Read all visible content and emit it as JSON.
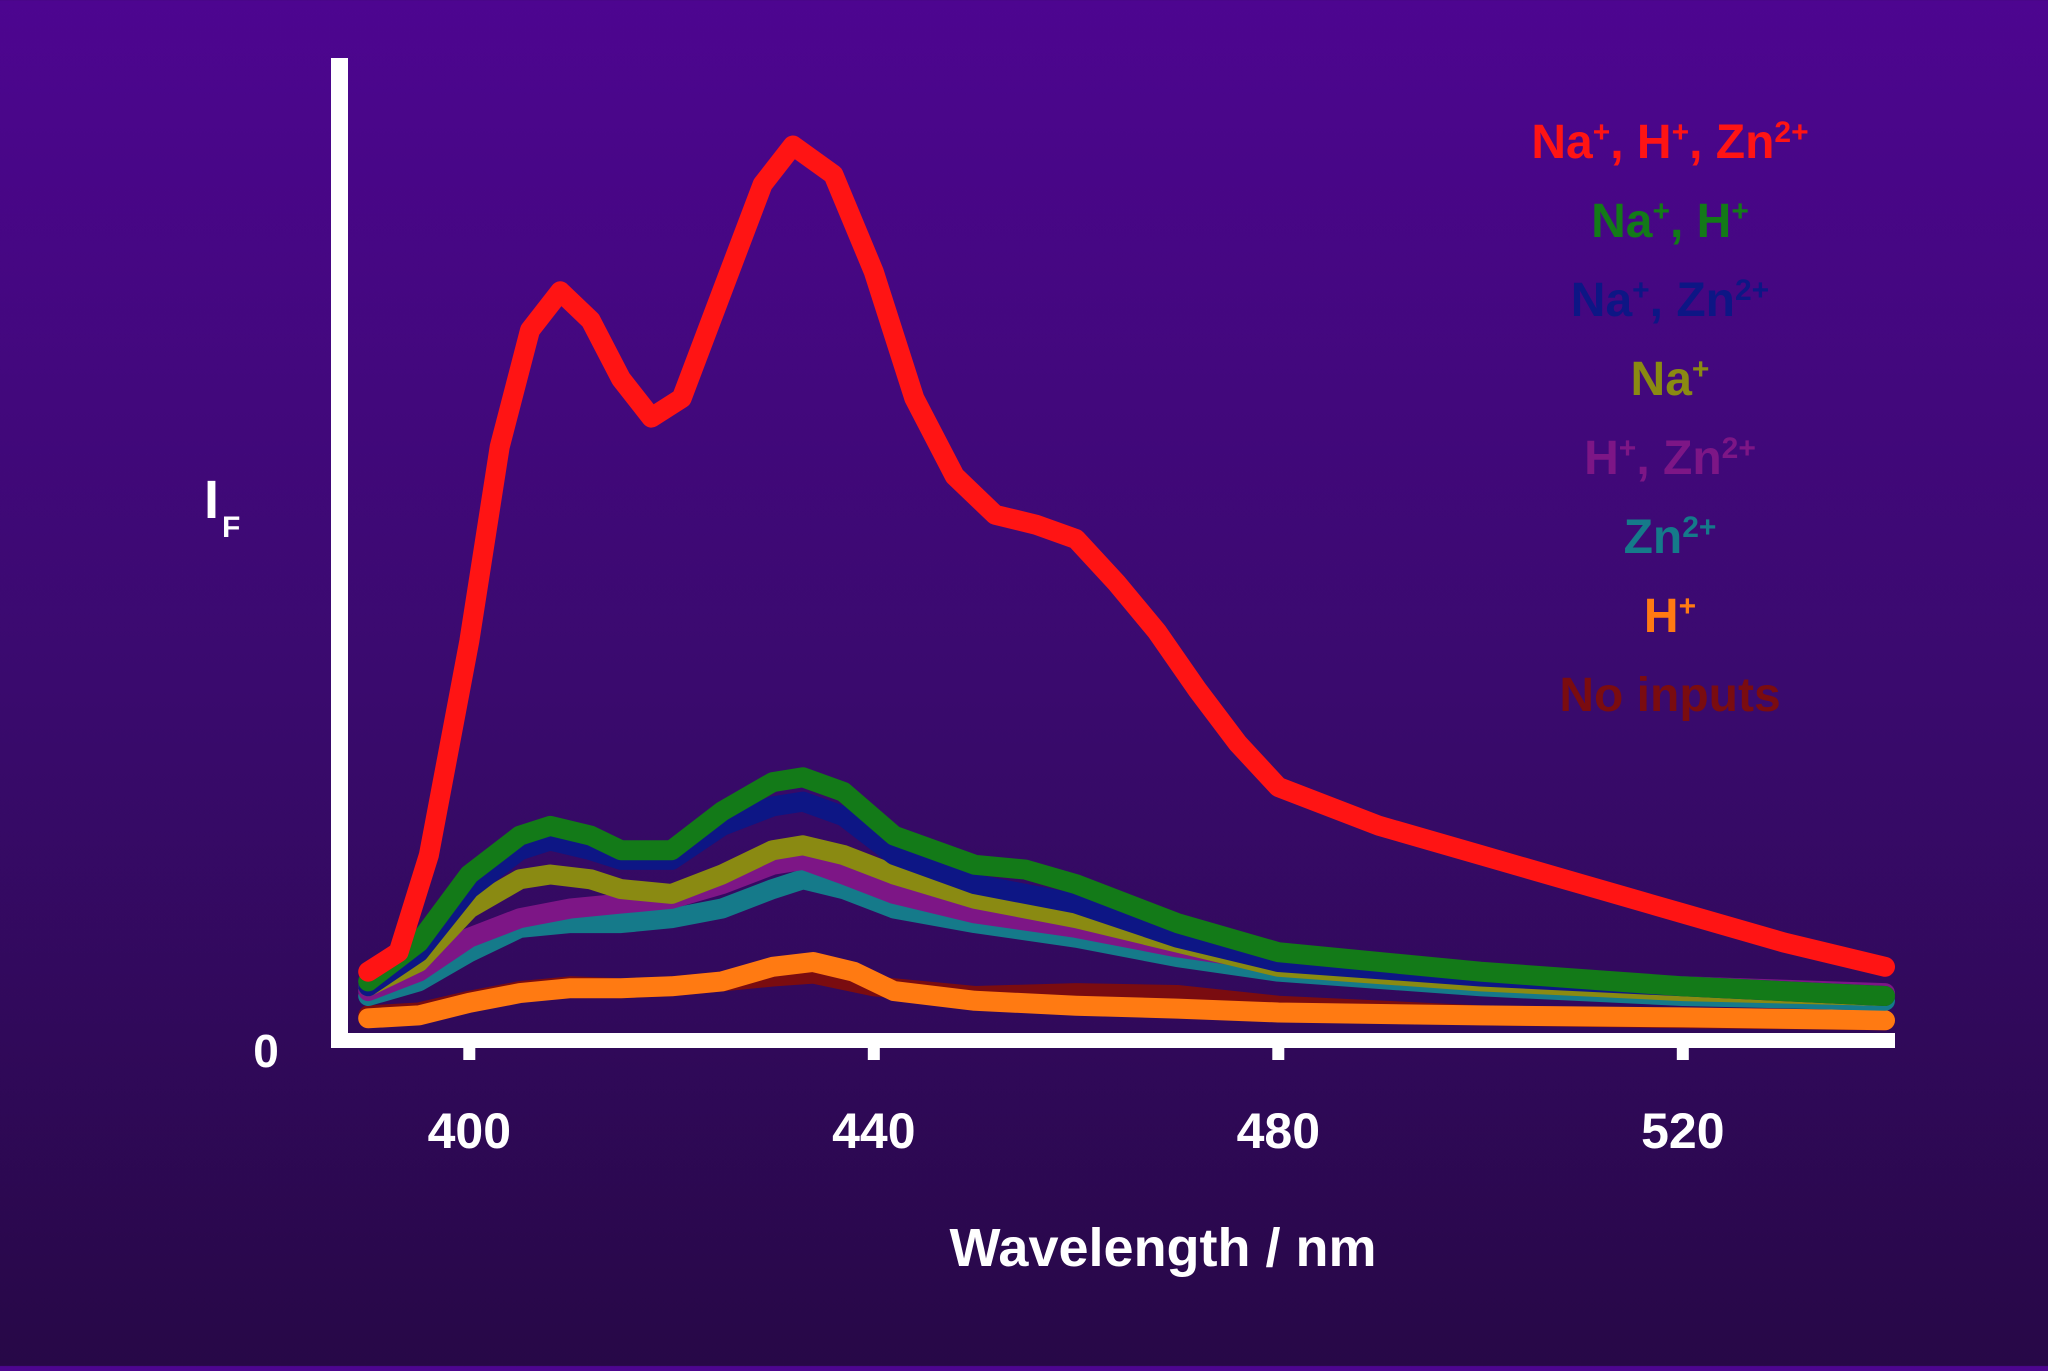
{
  "chart_data": {
    "type": "line",
    "title": "",
    "xlabel": "Wavelength / nm",
    "ylabel_main": "I",
    "ylabel_sub": "F",
    "y_origin_label": "0",
    "xlim": [
      388,
      540
    ],
    "ylim": [
      0,
      100
    ],
    "x_ticks": [
      400,
      440,
      480,
      520
    ],
    "x_tick_labels": [
      "400",
      "440",
      "480",
      "520"
    ],
    "grid": false,
    "legend_position": "top-right",
    "series": [
      {
        "name": "No inputs",
        "color": "#7a0c10",
        "legend": [
          {
            "t": "No inputs"
          }
        ],
        "points": [
          [
            390,
            1.5
          ],
          [
            395,
            1.8
          ],
          [
            400,
            3.0
          ],
          [
            405,
            4.0
          ],
          [
            410,
            4.5
          ],
          [
            415,
            4.3
          ],
          [
            420,
            4.5
          ],
          [
            425,
            5.0
          ],
          [
            430,
            5.5
          ],
          [
            434,
            5.8
          ],
          [
            440,
            4.5
          ],
          [
            450,
            3.5
          ],
          [
            460,
            3.8
          ],
          [
            470,
            3.6
          ],
          [
            480,
            2.5
          ],
          [
            500,
            1.5
          ],
          [
            520,
            1.2
          ],
          [
            540,
            1.0
          ]
        ]
      },
      {
        "name": "H+",
        "color": "#ff7a12",
        "legend": [
          {
            "t": "H"
          },
          {
            "t": "+",
            "sup": true
          }
        ],
        "points": [
          [
            390,
            1.2
          ],
          [
            395,
            1.5
          ],
          [
            400,
            2.8
          ],
          [
            405,
            3.8
          ],
          [
            410,
            4.3
          ],
          [
            415,
            4.3
          ],
          [
            420,
            4.5
          ],
          [
            425,
            5.0
          ],
          [
            430,
            6.5
          ],
          [
            434,
            7.0
          ],
          [
            438,
            6.0
          ],
          [
            442,
            4.0
          ],
          [
            450,
            3.0
          ],
          [
            460,
            2.5
          ],
          [
            470,
            2.2
          ],
          [
            480,
            1.8
          ],
          [
            500,
            1.5
          ],
          [
            520,
            1.3
          ],
          [
            540,
            1.0
          ]
        ]
      },
      {
        "name": "Zn2+",
        "color": "#157a8a",
        "legend": [
          {
            "t": "Zn"
          },
          {
            "t": "2+",
            "sup": true
          }
        ],
        "points": [
          [
            390,
            3.5
          ],
          [
            395,
            5.0
          ],
          [
            400,
            8.0
          ],
          [
            405,
            10.5
          ],
          [
            410,
            11.0
          ],
          [
            415,
            11.0
          ],
          [
            420,
            11.5
          ],
          [
            425,
            12.5
          ],
          [
            430,
            14.5
          ],
          [
            433,
            15.5
          ],
          [
            437,
            14.5
          ],
          [
            442,
            12.5
          ],
          [
            450,
            11.0
          ],
          [
            460,
            9.5
          ],
          [
            470,
            7.5
          ],
          [
            480,
            6.0
          ],
          [
            500,
            4.5
          ],
          [
            520,
            3.5
          ],
          [
            540,
            3.0
          ]
        ]
      },
      {
        "name": "H+, Zn2+",
        "color": "#7d1686",
        "legend": [
          {
            "t": "H"
          },
          {
            "t": "+",
            "sup": true
          },
          {
            "t": ", Zn"
          },
          {
            "t": "2+",
            "sup": true
          }
        ],
        "points": [
          [
            390,
            4.0
          ],
          [
            395,
            6.0
          ],
          [
            400,
            9.5
          ],
          [
            405,
            11.5
          ],
          [
            410,
            12.5
          ],
          [
            415,
            13.0
          ],
          [
            420,
            13.5
          ],
          [
            425,
            15.0
          ],
          [
            430,
            17.0
          ],
          [
            433,
            17.5
          ],
          [
            437,
            16.0
          ],
          [
            442,
            14.0
          ],
          [
            450,
            12.0
          ],
          [
            460,
            10.5
          ],
          [
            470,
            8.5
          ],
          [
            480,
            7.0
          ],
          [
            500,
            5.5
          ],
          [
            520,
            4.5
          ],
          [
            540,
            3.8
          ]
        ]
      },
      {
        "name": "Na+",
        "color": "#8a8a12",
        "legend": [
          {
            "t": "Na"
          },
          {
            "t": "+",
            "sup": true
          }
        ],
        "points": [
          [
            390,
            4.5
          ],
          [
            395,
            7.0
          ],
          [
            400,
            12.5
          ],
          [
            405,
            15.5
          ],
          [
            408,
            16.0
          ],
          [
            412,
            15.5
          ],
          [
            415,
            14.5
          ],
          [
            420,
            14.0
          ],
          [
            425,
            16.0
          ],
          [
            430,
            18.5
          ],
          [
            433,
            19.0
          ],
          [
            437,
            18.0
          ],
          [
            442,
            16.0
          ],
          [
            450,
            13.5
          ],
          [
            460,
            11.5
          ],
          [
            470,
            9.0
          ],
          [
            480,
            6.5
          ],
          [
            500,
            5.0
          ],
          [
            520,
            4.0
          ],
          [
            540,
            3.5
          ]
        ]
      },
      {
        "name": "Na+, Zn2+",
        "color": "#0d1685",
        "legend": [
          {
            "t": "Na"
          },
          {
            "t": "+",
            "sup": true
          },
          {
            "t": ", Zn"
          },
          {
            "t": "2+",
            "sup": true
          }
        ],
        "points": [
          [
            390,
            4.5
          ],
          [
            395,
            8.0
          ],
          [
            400,
            14.5
          ],
          [
            405,
            18.5
          ],
          [
            408,
            19.5
          ],
          [
            412,
            18.5
          ],
          [
            415,
            17.5
          ],
          [
            420,
            17.5
          ],
          [
            425,
            21.0
          ],
          [
            430,
            23.0
          ],
          [
            433,
            23.5
          ],
          [
            437,
            22.0
          ],
          [
            442,
            18.0
          ],
          [
            450,
            15.0
          ],
          [
            460,
            13.0
          ],
          [
            470,
            9.5
          ],
          [
            480,
            7.0
          ],
          [
            500,
            5.5
          ],
          [
            520,
            4.5
          ],
          [
            540,
            3.5
          ]
        ]
      },
      {
        "name": "Na+, H+",
        "color": "#137a18",
        "legend": [
          {
            "t": "Na"
          },
          {
            "t": "+",
            "sup": true
          },
          {
            "t": ", H"
          },
          {
            "t": "+",
            "sup": true
          }
        ],
        "points": [
          [
            390,
            5.0
          ],
          [
            395,
            9.0
          ],
          [
            400,
            16.0
          ],
          [
            405,
            20.0
          ],
          [
            408,
            21.0
          ],
          [
            412,
            20.0
          ],
          [
            415,
            18.5
          ],
          [
            420,
            18.5
          ],
          [
            425,
            22.5
          ],
          [
            430,
            25.5
          ],
          [
            433,
            26.0
          ],
          [
            437,
            24.5
          ],
          [
            442,
            20.0
          ],
          [
            450,
            17.0
          ],
          [
            455,
            16.5
          ],
          [
            460,
            15.0
          ],
          [
            470,
            11.0
          ],
          [
            480,
            8.0
          ],
          [
            500,
            6.0
          ],
          [
            520,
            4.5
          ],
          [
            540,
            3.5
          ]
        ]
      },
      {
        "name": "Na+, H+, Zn2+",
        "color": "#ff1414",
        "legend": [
          {
            "t": "Na"
          },
          {
            "t": "+",
            "sup": true
          },
          {
            "t": ", H"
          },
          {
            "t": "+",
            "sup": true
          },
          {
            "t": ", Zn"
          },
          {
            "t": "2+",
            "sup": true
          }
        ],
        "points": [
          [
            390,
            6.0
          ],
          [
            393,
            8.0
          ],
          [
            396,
            18.0
          ],
          [
            400,
            40.0
          ],
          [
            403,
            60.0
          ],
          [
            406,
            72.0
          ],
          [
            409,
            76.0
          ],
          [
            412,
            73.0
          ],
          [
            415,
            67.0
          ],
          [
            418,
            63.0
          ],
          [
            421,
            65.0
          ],
          [
            425,
            76.0
          ],
          [
            429,
            87.0
          ],
          [
            432,
            91.0
          ],
          [
            436,
            88.0
          ],
          [
            440,
            78.0
          ],
          [
            444,
            65.0
          ],
          [
            448,
            57.0
          ],
          [
            452,
            53.0
          ],
          [
            456,
            52.0
          ],
          [
            460,
            50.5
          ],
          [
            464,
            46.0
          ],
          [
            468,
            41.0
          ],
          [
            472,
            35.0
          ],
          [
            476,
            29.5
          ],
          [
            480,
            25.0
          ],
          [
            490,
            21.0
          ],
          [
            500,
            18.0
          ],
          [
            510,
            15.0
          ],
          [
            520,
            12.0
          ],
          [
            530,
            9.0
          ],
          [
            540,
            6.5
          ]
        ]
      }
    ]
  }
}
